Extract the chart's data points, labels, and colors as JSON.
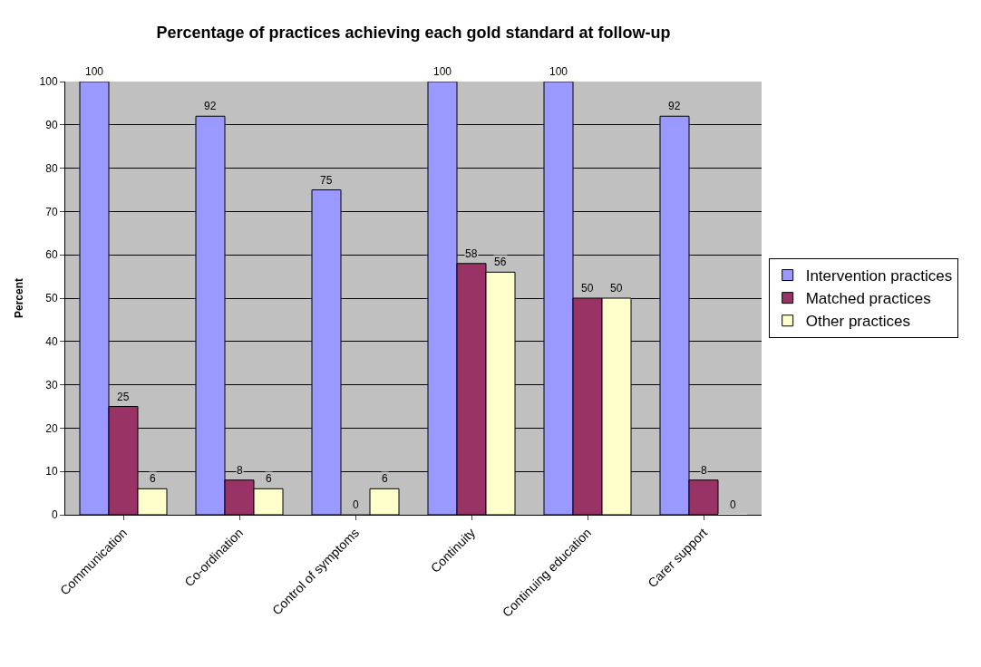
{
  "chart_data": {
    "type": "bar",
    "title": "Percentage of practices achieving each gold standard at follow-up",
    "ylabel": "Percent",
    "categories": [
      "Communication",
      "Co-ordination",
      "Control of symptoms",
      "Continuity",
      "Continuing education",
      "Carer support"
    ],
    "series": [
      {
        "name": "Intervention practices",
        "color": "#9999ff",
        "values": [
          100,
          92,
          75,
          100,
          100,
          92
        ]
      },
      {
        "name": "Matched practices",
        "color": "#993366",
        "values": [
          25,
          8,
          0,
          58,
          50,
          8
        ]
      },
      {
        "name": "Other practices",
        "color": "#ffffcc",
        "values": [
          6,
          6,
          6,
          56,
          50,
          0
        ]
      }
    ],
    "ylim": [
      0,
      100
    ],
    "yticks": [
      0,
      10,
      20,
      30,
      40,
      50,
      60,
      70,
      80,
      90,
      100
    ],
    "grid": "y",
    "legend": "right",
    "data_labels": true
  }
}
